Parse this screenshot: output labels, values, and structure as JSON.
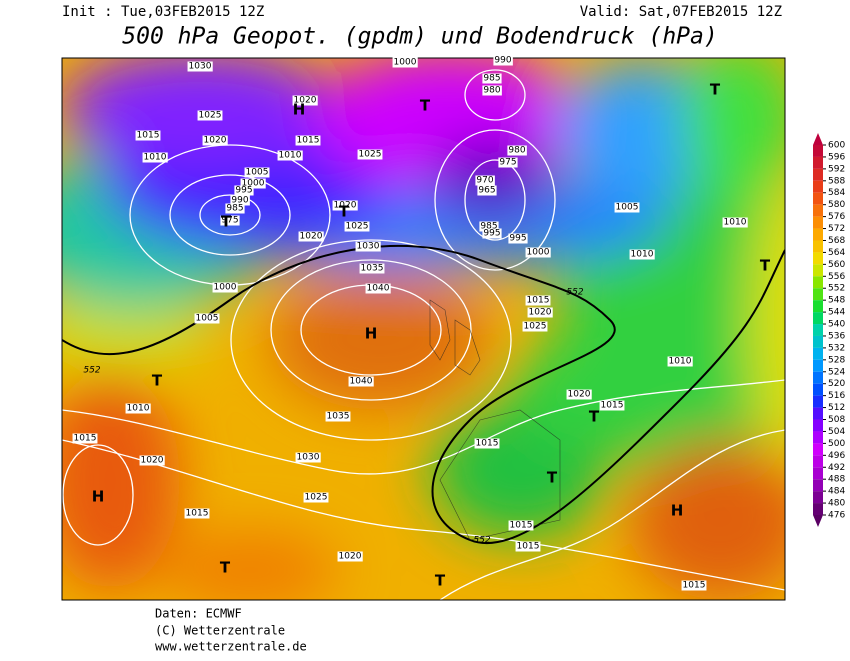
{
  "header": {
    "init": "Init : Tue,03FEB2015 12Z",
    "valid": "Valid: Sat,07FEB2015 12Z",
    "title": "500 hPa Geopot. (gpdm) und Bodendruck (hPa)"
  },
  "colorbar": {
    "ticks": [
      600,
      596,
      592,
      588,
      584,
      580,
      576,
      572,
      568,
      564,
      560,
      556,
      552,
      548,
      544,
      540,
      536,
      532,
      528,
      524,
      520,
      516,
      512,
      508,
      504,
      500,
      496,
      492,
      488,
      484,
      480,
      476
    ]
  },
  "map": {
    "isobar_labels": [
      "1030",
      "1000",
      "990",
      "985",
      "980",
      "1020",
      "1025",
      "1015",
      "1020",
      "1015",
      "1010",
      "1010",
      "1025",
      "980",
      "975",
      "1005",
      "1000",
      "970",
      "965",
      "995",
      "990",
      "985",
      "975",
      "1020",
      "1025",
      "1005",
      "1010",
      "985",
      "995",
      "995",
      "1020",
      "1030",
      "1000",
      "1010",
      "1035",
      "1040",
      "1000",
      "1015",
      "1020",
      "1005",
      "1025",
      "1040",
      "1010",
      "1010",
      "1020",
      "1015",
      "1035",
      "1015",
      "1015",
      "1020",
      "1030",
      "1025",
      "1015",
      "1015",
      "1015",
      "1020",
      "1015"
    ],
    "contour_552_labels": [
      "552",
      "552",
      "552"
    ],
    "pressure_centers": [
      "H",
      "T",
      "T",
      "T",
      "T",
      "T",
      "H",
      "T",
      "H",
      "T",
      "T",
      "T",
      "T",
      "H"
    ]
  },
  "footer": [
    "Daten: ECMWF",
    "(C) Wetterzentrale",
    "www.wetterzentrale.de"
  ]
}
